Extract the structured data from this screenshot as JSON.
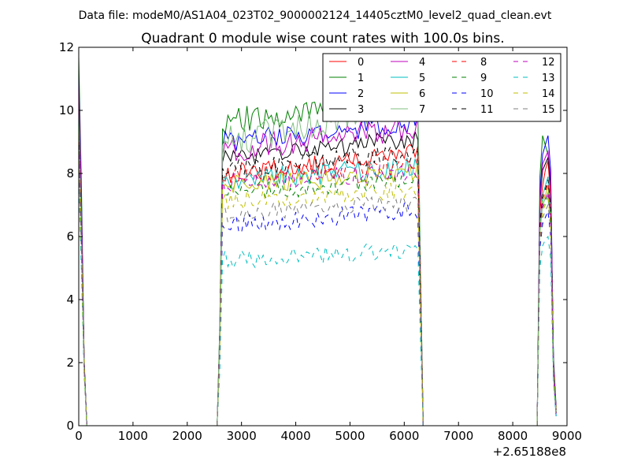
{
  "figure": {
    "suptitle": "Data file: modeM0/AS1A04_023T02_9000002124_14405cztM0_level2_quad_clean.evt"
  },
  "chart_data": {
    "type": "line",
    "title": "Quadrant 0 module wise count rates with 100.0s bins.",
    "xlabel": "",
    "ylabel": "",
    "x_offset_label": "+2.65188e8",
    "xlim": [
      0,
      9000
    ],
    "ylim": [
      0,
      12
    ],
    "xticks": [
      0,
      1000,
      2000,
      3000,
      4000,
      5000,
      6000,
      7000,
      8000,
      9000
    ],
    "yticks": [
      0,
      2,
      4,
      6,
      8,
      10,
      12
    ],
    "legend_position": "top-right",
    "legend_columns": 4,
    "grid": false,
    "segments": [
      {
        "x0": 0,
        "dx": 50,
        "n": 6
      },
      {
        "x0": 2550,
        "dx": 50,
        "n": 77
      },
      {
        "x0": 8450,
        "dx": 50,
        "n": 8
      }
    ],
    "series": [
      {
        "name": "0",
        "color": "#ff0000",
        "dash": false,
        "seg1": [
          10.2,
          6.5,
          2.0,
          0.0,
          0.0,
          0.0
        ],
        "plateau": 8.3,
        "amp": 0.35,
        "trend": 0.7,
        "seg3": [
          0.0,
          6.8,
          7.6,
          8.1,
          8.4,
          7.2,
          1.9,
          0.4
        ]
      },
      {
        "name": "1",
        "color": "#008000",
        "dash": false,
        "seg1": [
          11.7,
          7.6,
          2.1,
          0.0,
          0.0,
          0.0
        ],
        "plateau": 10.0,
        "amp": 0.45,
        "trend": 0.8,
        "seg3": [
          0.0,
          7.9,
          9.2,
          8.9,
          8.6,
          7.7,
          2.2,
          0.6
        ]
      },
      {
        "name": "2",
        "color": "#0000ff",
        "dash": false,
        "seg1": [
          11.1,
          7.2,
          2.0,
          0.0,
          0.0,
          0.0
        ],
        "plateau": 9.3,
        "amp": 0.35,
        "trend": 0.7,
        "seg3": [
          0.0,
          7.4,
          8.6,
          8.9,
          9.2,
          8.1,
          2.1,
          0.5
        ]
      },
      {
        "name": "3",
        "color": "#000000",
        "dash": false,
        "seg1": [
          10.8,
          6.9,
          2.0,
          0.0,
          0.0,
          0.0
        ],
        "plateau": 8.8,
        "amp": 0.3,
        "trend": 0.7,
        "seg3": [
          0.0,
          7.1,
          8.1,
          8.3,
          8.5,
          7.6,
          2.0,
          0.5
        ]
      },
      {
        "name": "4",
        "color": "#bf00bf",
        "dash": false,
        "seg1": [
          10.9,
          7.0,
          2.0,
          0.0,
          0.0,
          0.0
        ],
        "plateau": 9.1,
        "amp": 0.4,
        "trend": 0.8,
        "seg3": [
          0.0,
          7.2,
          8.3,
          8.5,
          8.7,
          7.8,
          2.0,
          0.5
        ]
      },
      {
        "name": "5",
        "color": "#00bfbf",
        "dash": false,
        "seg1": [
          9.9,
          6.1,
          1.9,
          0.0,
          0.0,
          0.0
        ],
        "plateau": 8.0,
        "amp": 0.35,
        "trend": 0.5,
        "seg3": [
          0.0,
          6.4,
          7.3,
          7.6,
          7.9,
          6.9,
          1.8,
          0.4
        ]
      },
      {
        "name": "6",
        "color": "#bfbf00",
        "dash": false,
        "seg1": [
          9.6,
          5.9,
          1.8,
          0.0,
          0.0,
          0.0
        ],
        "plateau": 7.8,
        "amp": 0.35,
        "trend": 0.5,
        "seg3": [
          0.0,
          6.2,
          7.1,
          7.3,
          7.6,
          6.7,
          1.8,
          0.4
        ]
      },
      {
        "name": "7",
        "color": "#7fbf7f",
        "dash": false,
        "seg1": [
          9.4,
          5.8,
          1.8,
          0.0,
          0.0,
          0.0
        ],
        "plateau": 9.6,
        "amp": 0.5,
        "trend": 1.3,
        "seg3": [
          0.0,
          6.1,
          7.0,
          7.2,
          7.4,
          6.6,
          1.7,
          0.4
        ]
      },
      {
        "name": "8",
        "color": "#ff0000",
        "dash": true,
        "seg1": [
          9.3,
          5.9,
          1.9,
          0.0,
          0.0,
          0.0
        ],
        "plateau": 8.1,
        "amp": 0.3,
        "trend": 0.4,
        "seg3": [
          0.0,
          6.3,
          7.2,
          7.4,
          7.7,
          6.8,
          1.8,
          0.4
        ]
      },
      {
        "name": "9",
        "color": "#008000",
        "dash": true,
        "seg1": [
          9.0,
          5.7,
          1.8,
          0.0,
          0.0,
          0.0
        ],
        "plateau": 7.6,
        "amp": 0.3,
        "trend": 0.4,
        "seg3": [
          0.0,
          6.0,
          6.9,
          7.1,
          7.3,
          6.5,
          1.7,
          0.4
        ]
      },
      {
        "name": "10",
        "color": "#0000ff",
        "dash": true,
        "seg1": [
          8.4,
          5.2,
          1.7,
          0.0,
          0.0,
          0.0
        ],
        "plateau": 6.6,
        "amp": 0.3,
        "trend": 0.5,
        "seg3": [
          0.0,
          5.6,
          6.4,
          6.6,
          6.8,
          6.0,
          1.6,
          0.3
        ]
      },
      {
        "name": "11",
        "color": "#000000",
        "dash": true,
        "seg1": [
          9.2,
          5.8,
          1.8,
          0.0,
          0.0,
          0.0
        ],
        "plateau": 8.4,
        "amp": 0.3,
        "trend": 0.5,
        "seg3": [
          0.0,
          6.4,
          7.3,
          7.5,
          7.8,
          6.9,
          1.8,
          0.4
        ]
      },
      {
        "name": "12",
        "color": "#bf00bf",
        "dash": true,
        "seg1": [
          8.9,
          5.6,
          1.8,
          0.0,
          0.0,
          0.0
        ],
        "plateau": 7.9,
        "amp": 0.3,
        "trend": 0.4,
        "seg3": [
          0.0,
          6.1,
          7.0,
          7.2,
          7.4,
          6.6,
          1.7,
          0.4
        ]
      },
      {
        "name": "13",
        "color": "#00bfbf",
        "dash": true,
        "seg1": [
          7.8,
          4.9,
          1.6,
          0.0,
          0.0,
          0.0
        ],
        "plateau": 5.4,
        "amp": 0.3,
        "trend": 0.3,
        "seg3": [
          0.0,
          5.0,
          5.7,
          5.9,
          6.0,
          5.3,
          1.4,
          0.3
        ]
      },
      {
        "name": "14",
        "color": "#bfbf00",
        "dash": true,
        "seg1": [
          8.7,
          5.5,
          1.8,
          0.0,
          0.0,
          0.0
        ],
        "plateau": 7.3,
        "amp": 0.3,
        "trend": 0.4,
        "seg3": [
          0.0,
          5.9,
          6.8,
          7.0,
          7.2,
          6.4,
          1.7,
          0.4
        ]
      },
      {
        "name": "15",
        "color": "#7f7f7f",
        "dash": true,
        "seg1": [
          8.6,
          5.4,
          1.7,
          0.0,
          0.0,
          0.0
        ],
        "plateau": 6.9,
        "amp": 0.3,
        "trend": 0.4,
        "seg3": [
          0.0,
          5.8,
          6.6,
          6.8,
          7.0,
          6.2,
          1.6,
          0.3
        ]
      }
    ]
  }
}
